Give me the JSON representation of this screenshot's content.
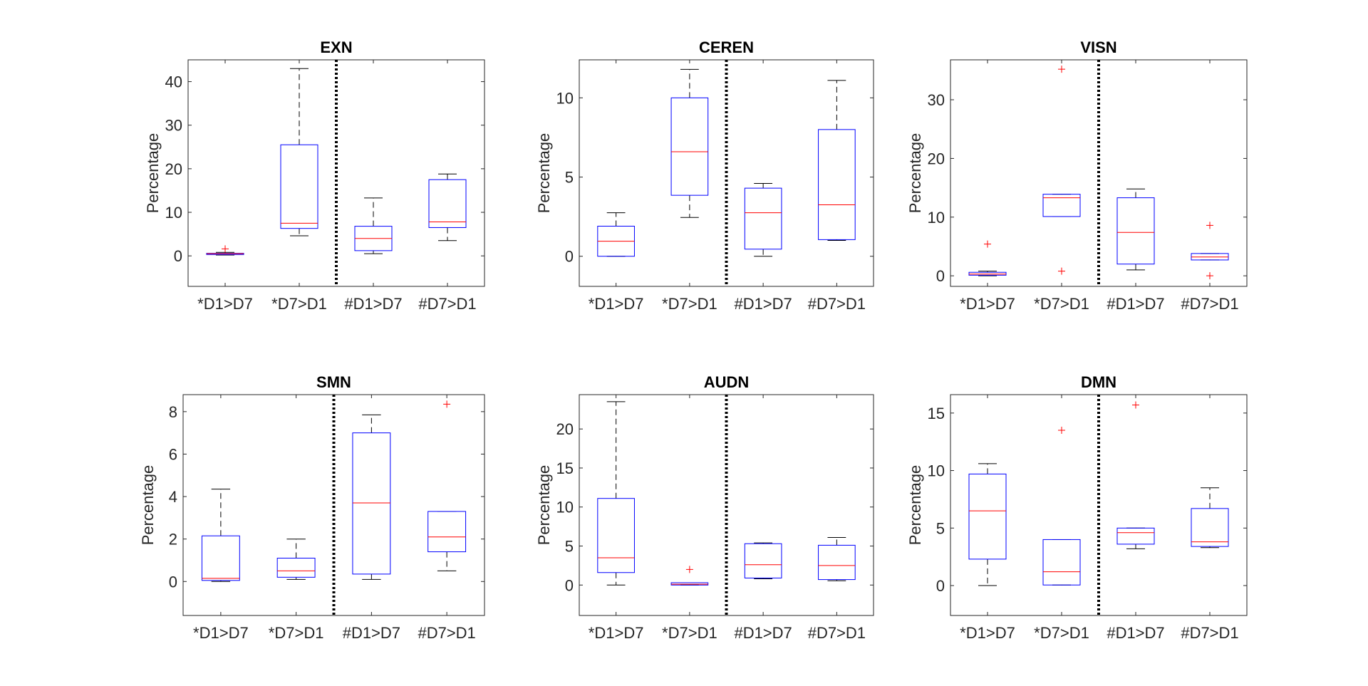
{
  "chart_data": [
    {
      "type": "box",
      "title": "EXN",
      "ylabel": "Percentage",
      "categories": [
        "*D1>D7",
        "*D7>D1",
        "#D1>D7",
        "#D7>D1"
      ],
      "ylim": [
        -7,
        45
      ],
      "yticks": [
        0,
        10,
        20,
        30,
        40
      ],
      "divider_after_category": 2,
      "boxes": [
        {
          "category": "*D1>D7",
          "min": 0.2,
          "q1": 0.3,
          "median": 0.5,
          "q3": 0.6,
          "max": 0.8,
          "outliers": [
            1.6
          ]
        },
        {
          "category": "*D7>D1",
          "min": 4.6,
          "q1": 6.3,
          "median": 7.5,
          "q3": 25.5,
          "max": 43,
          "outliers": []
        },
        {
          "category": "#D1>D7",
          "min": 0.5,
          "q1": 1.2,
          "median": 4.0,
          "q3": 6.8,
          "max": 13.3,
          "outliers": []
        },
        {
          "category": "#D7>D1",
          "min": 3.5,
          "q1": 6.5,
          "median": 7.8,
          "q3": 17.5,
          "max": 18.8,
          "outliers": []
        }
      ]
    },
    {
      "type": "box",
      "title": "CEREN",
      "ylabel": "Percentage",
      "categories": [
        "*D1>D7",
        "*D7>D1",
        "#D1>D7",
        "#D7>D1"
      ],
      "ylim": [
        -1.9,
        12.4
      ],
      "yticks": [
        0,
        5,
        10
      ],
      "divider_after_category": 2,
      "boxes": [
        {
          "category": "*D1>D7",
          "min": 0,
          "q1": 0,
          "median": 0.95,
          "q3": 1.9,
          "max": 2.75,
          "outliers": []
        },
        {
          "category": "*D7>D1",
          "min": 2.45,
          "q1": 3.85,
          "median": 6.6,
          "q3": 10,
          "max": 11.8,
          "outliers": []
        },
        {
          "category": "#D1>D7",
          "min": 0,
          "q1": 0.45,
          "median": 2.75,
          "q3": 4.3,
          "max": 4.6,
          "outliers": []
        },
        {
          "category": "#D7>D1",
          "min": 1.0,
          "q1": 1.05,
          "median": 3.25,
          "q3": 8.0,
          "max": 11.1,
          "outliers": []
        }
      ]
    },
    {
      "type": "box",
      "title": "VISN",
      "ylabel": "Percentage",
      "categories": [
        "*D1>D7",
        "*D7>D1",
        "#D1>D7",
        "#D7>D1"
      ],
      "ylim": [
        -1.8,
        36.8
      ],
      "yticks": [
        0,
        10,
        20,
        30
      ],
      "divider_after_category": 2,
      "boxes": [
        {
          "category": "*D1>D7",
          "min": 0,
          "q1": 0.1,
          "median": 0.3,
          "q3": 0.6,
          "max": 0.8,
          "outliers": [
            5.4
          ]
        },
        {
          "category": "*D7>D1",
          "min": 10.1,
          "q1": 10.1,
          "median": 13.3,
          "q3": 13.9,
          "max": 13.9,
          "outliers": [
            35.2,
            0.8
          ]
        },
        {
          "category": "#D1>D7",
          "min": 1.0,
          "q1": 2.0,
          "median": 7.4,
          "q3": 13.3,
          "max": 14.8,
          "outliers": []
        },
        {
          "category": "#D7>D1",
          "min": 2.7,
          "q1": 2.7,
          "median": 3.2,
          "q3": 3.8,
          "max": 3.8,
          "outliers": [
            8.6,
            0
          ]
        }
      ]
    },
    {
      "type": "box",
      "title": "SMN",
      "ylabel": "Percentage",
      "categories": [
        "*D1>D7",
        "*D7>D1",
        "#D1>D7",
        "#D7>D1"
      ],
      "ylim": [
        -1.6,
        8.8
      ],
      "yticks": [
        0,
        2,
        4,
        6,
        8
      ],
      "divider_after_category": 2,
      "boxes": [
        {
          "category": "*D1>D7",
          "min": 0,
          "q1": 0.05,
          "median": 0.15,
          "q3": 2.15,
          "max": 4.35,
          "outliers": []
        },
        {
          "category": "*D7>D1",
          "min": 0.1,
          "q1": 0.2,
          "median": 0.5,
          "q3": 1.1,
          "max": 2.0,
          "outliers": []
        },
        {
          "category": "#D1>D7",
          "min": 0.1,
          "q1": 0.35,
          "median": 3.7,
          "q3": 7.0,
          "max": 7.85,
          "outliers": []
        },
        {
          "category": "#D7>D1",
          "min": 0.5,
          "q1": 1.4,
          "median": 2.1,
          "q3": 3.3,
          "max": 3.3,
          "outliers": [
            8.35
          ]
        }
      ]
    },
    {
      "type": "box",
      "title": "AUDN",
      "ylabel": "Percentage",
      "categories": [
        "*D1>D7",
        "*D7>D1",
        "#D1>D7",
        "#D7>D1"
      ],
      "ylim": [
        -3.9,
        24.4
      ],
      "yticks": [
        0,
        5,
        10,
        15,
        20
      ],
      "divider_after_category": 2,
      "boxes": [
        {
          "category": "*D1>D7",
          "min": 0,
          "q1": 1.6,
          "median": 3.5,
          "q3": 11.1,
          "max": 23.5,
          "outliers": []
        },
        {
          "category": "*D7>D1",
          "min": 0,
          "q1": 0,
          "median": 0.1,
          "q3": 0.3,
          "max": 0.3,
          "outliers": [
            2.0
          ]
        },
        {
          "category": "#D1>D7",
          "min": 0.8,
          "q1": 0.9,
          "median": 2.6,
          "q3": 5.3,
          "max": 5.4,
          "outliers": []
        },
        {
          "category": "#D7>D1",
          "min": 0.55,
          "q1": 0.7,
          "median": 2.5,
          "q3": 5.1,
          "max": 6.1,
          "outliers": []
        }
      ]
    },
    {
      "type": "box",
      "title": "DMN",
      "ylabel": "Percentage",
      "categories": [
        "*D1>D7",
        "*D7>D1",
        "#D1>D7",
        "#D7>D1"
      ],
      "ylim": [
        -2.6,
        16.6
      ],
      "yticks": [
        0,
        5,
        10,
        15
      ],
      "divider_after_category": 2,
      "boxes": [
        {
          "category": "*D1>D7",
          "min": 0,
          "q1": 2.3,
          "median": 6.5,
          "q3": 9.7,
          "max": 10.6,
          "outliers": []
        },
        {
          "category": "*D7>D1",
          "min": 0.05,
          "q1": 0.05,
          "median": 1.2,
          "q3": 4.0,
          "max": 4.0,
          "outliers": [
            13.5
          ]
        },
        {
          "category": "#D1>D7",
          "min": 3.2,
          "q1": 3.6,
          "median": 4.6,
          "q3": 5.0,
          "max": 5.0,
          "outliers": [
            15.7
          ]
        },
        {
          "category": "#D7>D1",
          "min": 3.3,
          "q1": 3.4,
          "median": 3.8,
          "q3": 6.7,
          "max": 8.5,
          "outliers": []
        }
      ]
    }
  ],
  "colors": {
    "box": "#0000ff",
    "median": "#ff0000",
    "whisker": "#000000",
    "outlier": "#ff0000",
    "divider": "#000000",
    "axis": "#262626"
  }
}
